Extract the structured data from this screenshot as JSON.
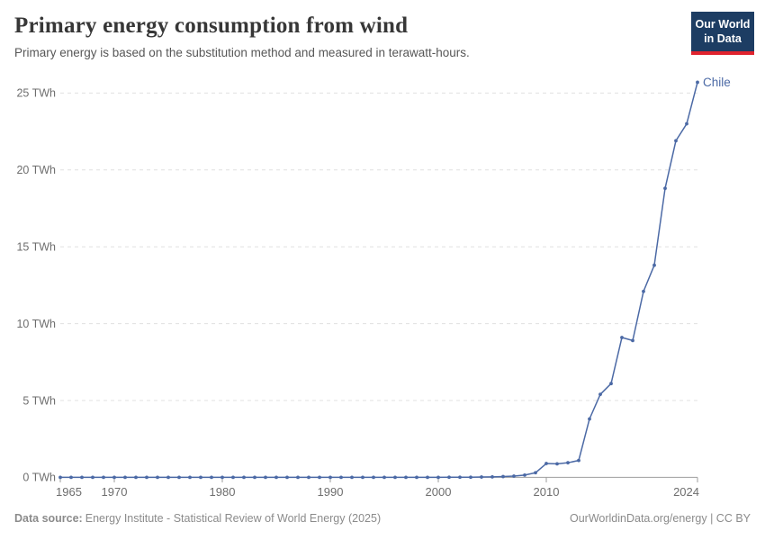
{
  "header": {
    "title": "Primary energy consumption from wind",
    "subtitle": "Primary energy is based on the substitution method and measured in terawatt-hours."
  },
  "logo": {
    "line1": "Our World",
    "line2": "in Data",
    "bg_color": "#1d3d63",
    "stripe_color": "#e0232e"
  },
  "footer": {
    "datasource_label": "Data source:",
    "datasource_text": "Energy Institute - Statistical Review of World Energy (2025)",
    "rights": "OurWorldinData.org/energy | CC BY"
  },
  "colors": {
    "grid": "#e0e0e0",
    "axis": "#9e9e9e",
    "tick_label": "#6e6e6e",
    "accent_blue": "#4b69a5"
  },
  "chart_data": {
    "type": "line",
    "title": "Primary energy consumption from wind",
    "xlabel": "",
    "ylabel": "TWh",
    "xlim": [
      1965,
      2024
    ],
    "ylim": [
      0,
      25.7
    ],
    "grid": "horizontal-dashed",
    "legend_position": "end-of-line-label",
    "x_ticks": [
      1965,
      1970,
      1980,
      1990,
      2000,
      2010,
      2024
    ],
    "y_ticks": [
      0,
      5,
      10,
      15,
      20,
      25
    ],
    "y_tick_suffix": " TWh",
    "series": [
      {
        "name": "Chile",
        "color": "#4b69a5",
        "years": [
          1965,
          1966,
          1967,
          1968,
          1969,
          1970,
          1971,
          1972,
          1973,
          1974,
          1975,
          1976,
          1977,
          1978,
          1979,
          1980,
          1981,
          1982,
          1983,
          1984,
          1985,
          1986,
          1987,
          1988,
          1989,
          1990,
          1991,
          1992,
          1993,
          1994,
          1995,
          1996,
          1997,
          1998,
          1999,
          2000,
          2001,
          2002,
          2003,
          2004,
          2005,
          2006,
          2007,
          2008,
          2009,
          2010,
          2011,
          2012,
          2013,
          2014,
          2015,
          2016,
          2017,
          2018,
          2019,
          2020,
          2021,
          2022,
          2023,
          2024
        ],
        "values": [
          0,
          0,
          0,
          0,
          0,
          0,
          0,
          0,
          0,
          0,
          0,
          0,
          0,
          0,
          0,
          0,
          0,
          0,
          0,
          0,
          0,
          0,
          0,
          0,
          0,
          0,
          0,
          0,
          0,
          0,
          0,
          0,
          0,
          0,
          0,
          0,
          0.01,
          0.01,
          0.01,
          0.02,
          0.03,
          0.05,
          0.08,
          0.15,
          0.3,
          0.9,
          0.88,
          0.95,
          1.1,
          3.8,
          5.4,
          6.1,
          9.1,
          8.9,
          12.1,
          13.8,
          18.8,
          21.9,
          23.0,
          25.7
        ]
      }
    ]
  }
}
